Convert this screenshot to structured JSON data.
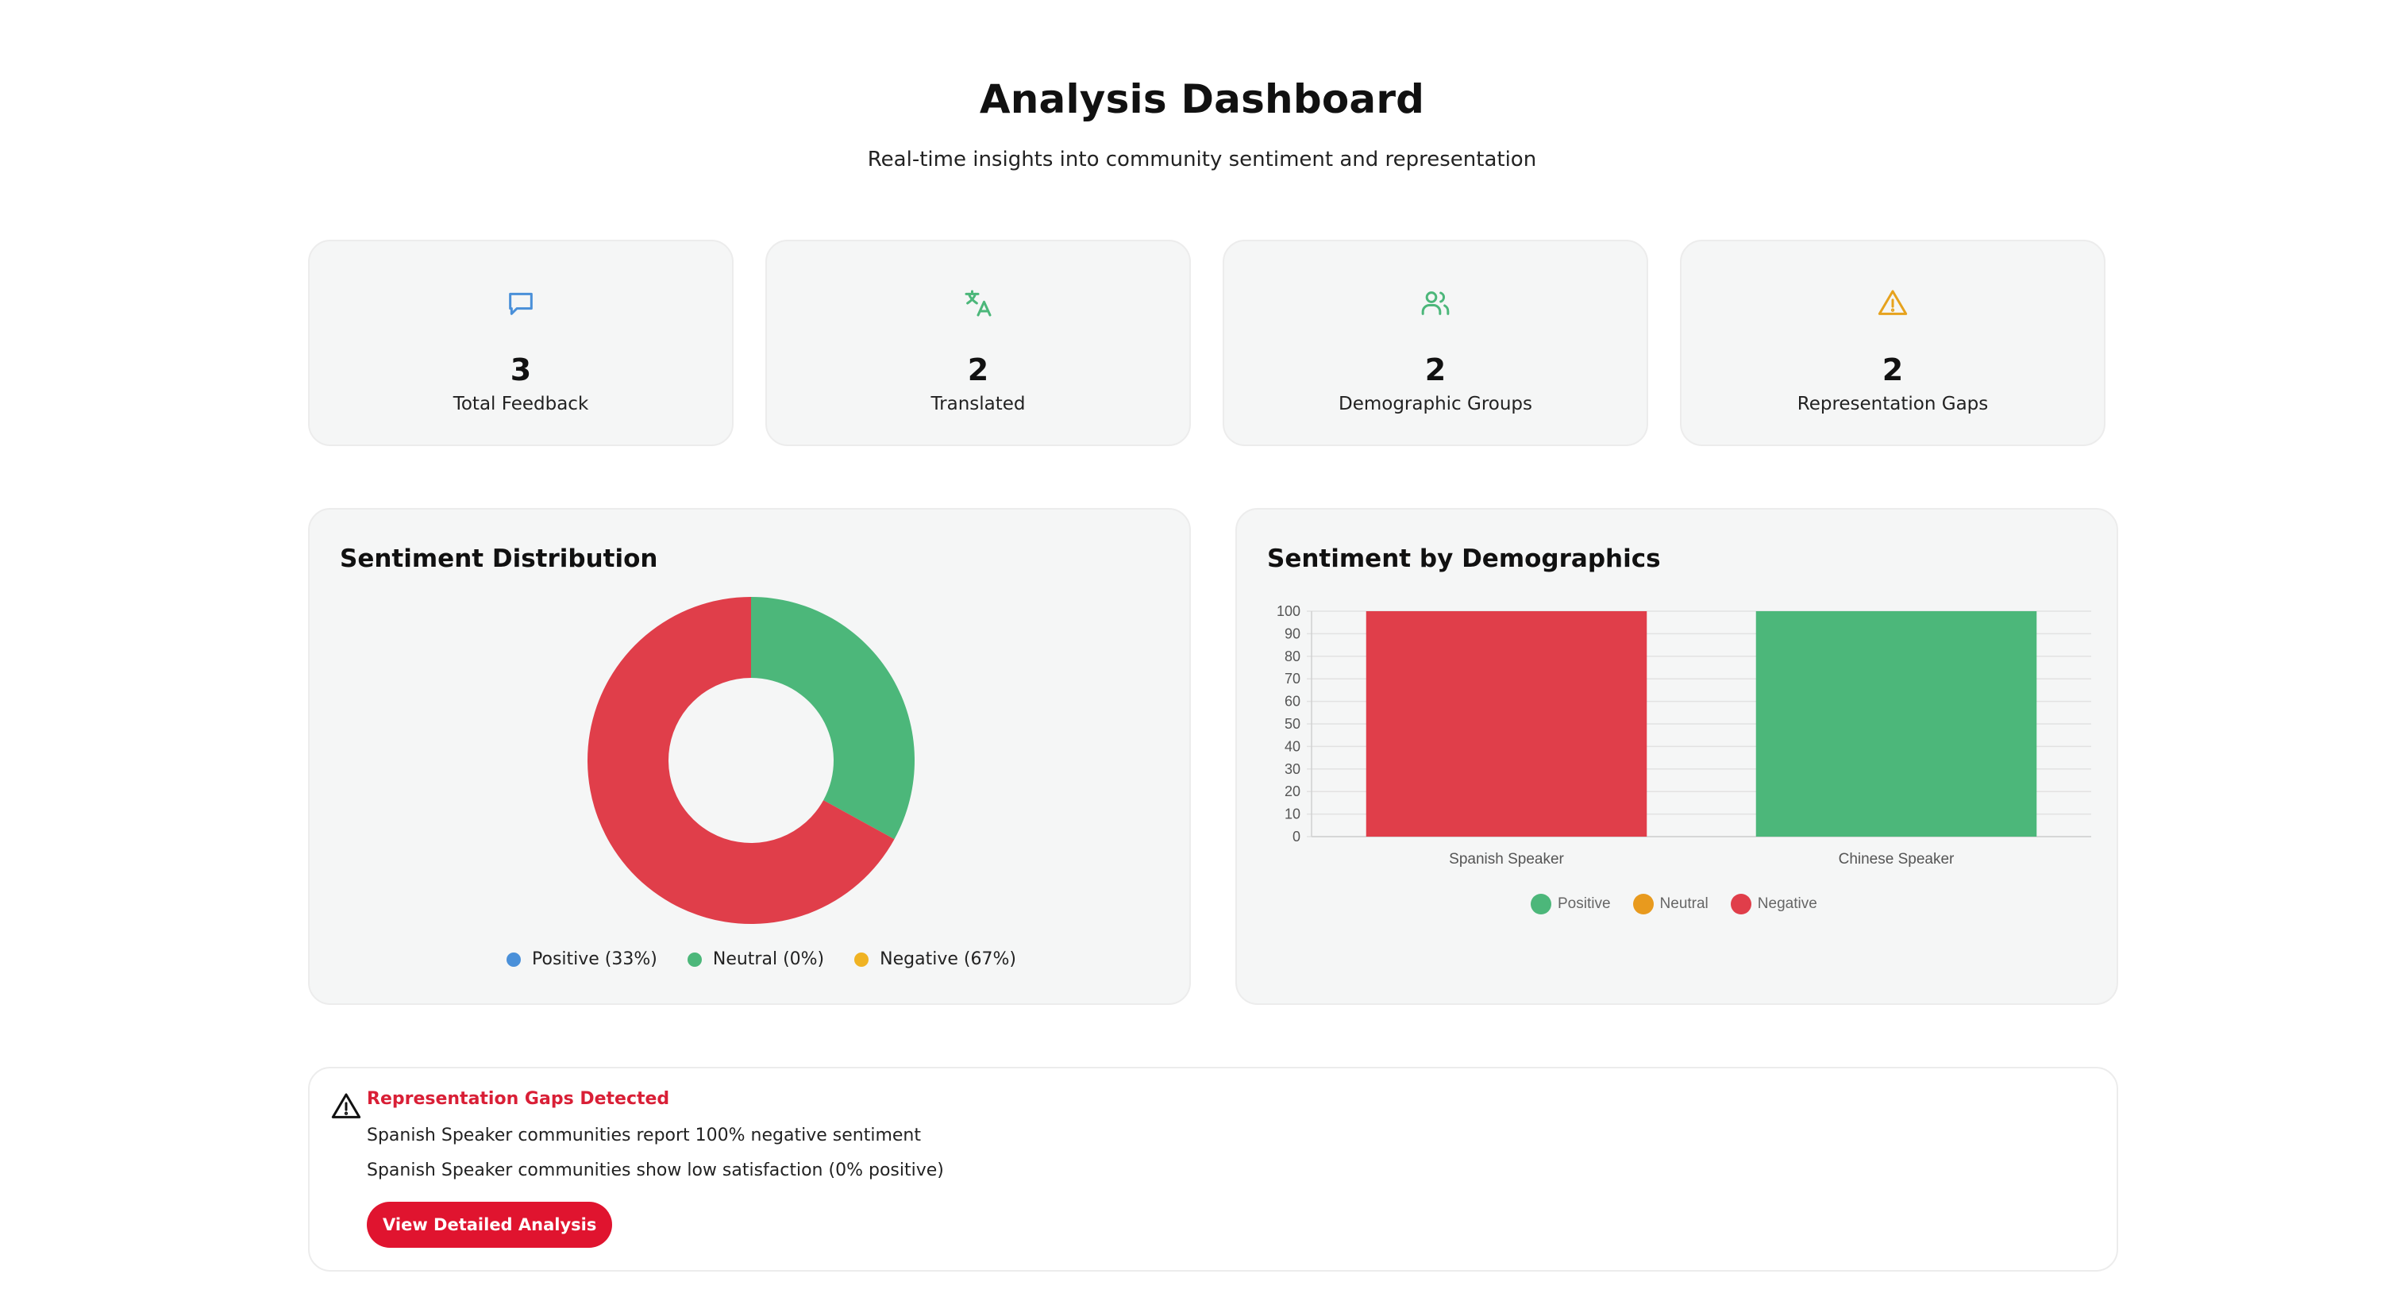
{
  "header": {
    "title": "Analysis Dashboard",
    "subtitle": "Real-time insights into community sentiment and representation"
  },
  "stats": [
    {
      "icon": "message-icon",
      "value": "3",
      "label": "Total Feedback",
      "color": "#4a90d9"
    },
    {
      "icon": "translate-icon",
      "value": "2",
      "label": "Translated",
      "color": "#4cb77a"
    },
    {
      "icon": "users-icon",
      "value": "2",
      "label": "Demographic Groups",
      "color": "#4cb77a"
    },
    {
      "icon": "warning-icon",
      "value": "2",
      "label": "Representation Gaps",
      "color": "#e6a21e"
    }
  ],
  "sentiment_panel": {
    "title": "Sentiment Distribution",
    "legend": [
      {
        "label": "Positive (33%)",
        "color": "#4a90d9"
      },
      {
        "label": "Neutral (0%)",
        "color": "#4cb77a"
      },
      {
        "label": "Negative (67%)",
        "color": "#f0b323"
      }
    ]
  },
  "demographics_panel": {
    "title": "Sentiment by Demographics",
    "legend": [
      {
        "label": "Positive",
        "color": "#4cb77a"
      },
      {
        "label": "Neutral",
        "color": "#e89a1e"
      },
      {
        "label": "Negative",
        "color": "#e03e4a"
      }
    ]
  },
  "chart_data": [
    {
      "type": "pie",
      "title": "Sentiment Distribution",
      "donut": true,
      "slices": [
        {
          "label": "Positive",
          "value": 33,
          "color": "#4cb77a"
        },
        {
          "label": "Neutral",
          "value": 0,
          "color": "#e89a1e"
        },
        {
          "label": "Negative",
          "value": 67,
          "color": "#e03e4a"
        }
      ]
    },
    {
      "type": "bar",
      "title": "Sentiment by Demographics",
      "categories": [
        "Spanish Speaker",
        "Chinese Speaker"
      ],
      "series": [
        {
          "name": "Positive",
          "values": [
            0,
            100
          ],
          "color": "#4cb77a"
        },
        {
          "name": "Neutral",
          "values": [
            0,
            0
          ],
          "color": "#e89a1e"
        },
        {
          "name": "Negative",
          "values": [
            100,
            0
          ],
          "color": "#e03e4a"
        }
      ],
      "stacked": true,
      "ylim": [
        0,
        100
      ],
      "yticks": [
        0,
        10,
        20,
        30,
        40,
        50,
        60,
        70,
        80,
        90,
        100
      ],
      "grid": true,
      "legend_position": "bottom"
    }
  ],
  "alert": {
    "title": "Representation Gaps Detected",
    "lines": [
      "Spanish Speaker communities report 100% negative sentiment",
      "Spanish Speaker communities show low satisfaction (0% positive)"
    ],
    "button_label": "View Detailed Analysis"
  }
}
